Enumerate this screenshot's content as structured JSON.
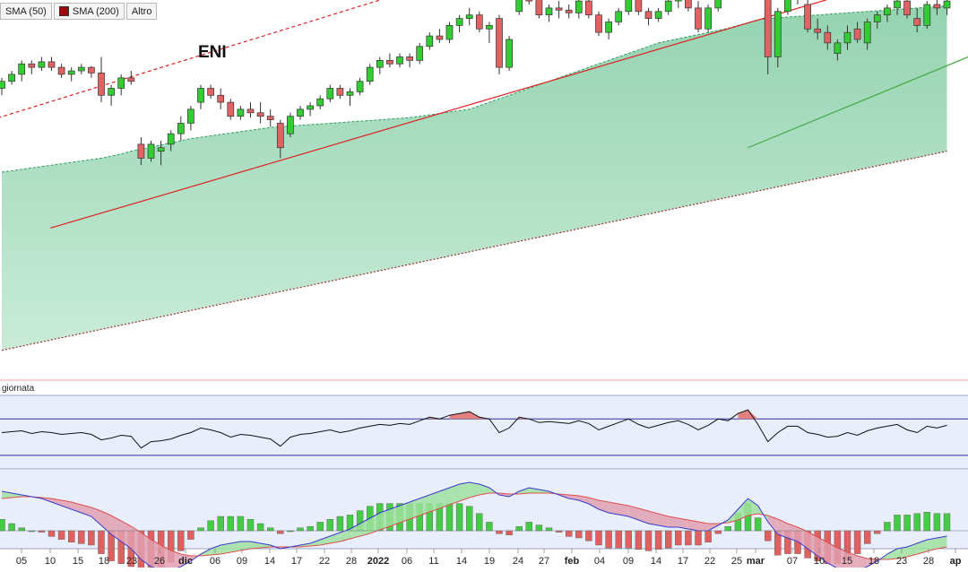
{
  "legend": [
    {
      "label": "SMA (50)",
      "color": "#1a3fcf"
    },
    {
      "label": "SMA (200)",
      "color": "#9b0d0d"
    },
    {
      "label": "Altro",
      "color": null
    }
  ],
  "ticker": "ENI",
  "indicator_label": "giornata",
  "colors": {
    "up": "#33cc33",
    "down": "#e06262",
    "wick": "#333333",
    "trend": "#dd2222",
    "band": "#8fd1ad",
    "rsi_line": "#111111",
    "macd_line": "#3a3ad0",
    "signal_line": "#e05050"
  },
  "chart_data": {
    "type": "candlestick",
    "title": "ENI",
    "x_labels": [
      "05",
      "10",
      "15",
      "18",
      "23",
      "26",
      "dic",
      "06",
      "09",
      "14",
      "17",
      "22",
      "28",
      "2022",
      "06",
      "11",
      "14",
      "19",
      "24",
      "27",
      "feb",
      "04",
      "09",
      "14",
      "17",
      "22",
      "25",
      "mar",
      "07",
      "10",
      "15",
      "18",
      "23",
      "28",
      "ap"
    ],
    "bold_labels": [
      "dic",
      "2022",
      "feb",
      "mar",
      "ap"
    ],
    "price_range": [
      8.2,
      13.5
    ],
    "ohlc": [
      [
        12.3,
        12.45,
        12.2,
        12.4
      ],
      [
        12.4,
        12.55,
        12.35,
        12.5
      ],
      [
        12.5,
        12.7,
        12.4,
        12.65
      ],
      [
        12.65,
        12.7,
        12.5,
        12.6
      ],
      [
        12.6,
        12.75,
        12.55,
        12.68
      ],
      [
        12.68,
        12.75,
        12.55,
        12.6
      ],
      [
        12.6,
        12.65,
        12.45,
        12.5
      ],
      [
        12.5,
        12.6,
        12.4,
        12.55
      ],
      [
        12.55,
        12.65,
        12.5,
        12.6
      ],
      [
        12.6,
        12.62,
        12.45,
        12.52
      ],
      [
        12.52,
        12.75,
        12.1,
        12.2
      ],
      [
        12.2,
        12.35,
        12.05,
        12.3
      ],
      [
        12.3,
        12.5,
        12.2,
        12.45
      ],
      [
        12.45,
        12.55,
        12.35,
        12.4
      ],
      [
        11.5,
        11.6,
        11.2,
        11.3
      ],
      [
        11.3,
        11.55,
        11.25,
        11.5
      ],
      [
        11.4,
        11.55,
        11.2,
        11.45
      ],
      [
        11.5,
        11.7,
        11.4,
        11.65
      ],
      [
        11.65,
        11.9,
        11.55,
        11.8
      ],
      [
        11.8,
        12.05,
        11.7,
        12.0
      ],
      [
        12.1,
        12.35,
        12.0,
        12.3
      ],
      [
        12.3,
        12.35,
        12.15,
        12.2
      ],
      [
        12.2,
        12.3,
        12.0,
        12.1
      ],
      [
        12.1,
        12.15,
        11.85,
        11.9
      ],
      [
        11.9,
        12.05,
        11.85,
        12.0
      ],
      [
        12.0,
        12.1,
        11.88,
        11.95
      ],
      [
        11.95,
        12.1,
        11.8,
        11.9
      ],
      [
        11.9,
        12.0,
        11.75,
        11.85
      ],
      [
        11.8,
        11.85,
        11.3,
        11.45
      ],
      [
        11.65,
        11.95,
        11.6,
        11.9
      ],
      [
        11.9,
        12.05,
        11.85,
        12.0
      ],
      [
        12.0,
        12.1,
        11.9,
        12.05
      ],
      [
        12.05,
        12.2,
        12.0,
        12.15
      ],
      [
        12.15,
        12.35,
        12.1,
        12.3
      ],
      [
        12.3,
        12.35,
        12.15,
        12.2
      ],
      [
        12.2,
        12.3,
        12.05,
        12.25
      ],
      [
        12.25,
        12.45,
        12.2,
        12.4
      ],
      [
        12.4,
        12.65,
        12.35,
        12.6
      ],
      [
        12.6,
        12.75,
        12.5,
        12.7
      ],
      [
        12.7,
        12.8,
        12.6,
        12.65
      ],
      [
        12.65,
        12.8,
        12.6,
        12.75
      ],
      [
        12.75,
        12.8,
        12.6,
        12.7
      ],
      [
        12.7,
        12.95,
        12.65,
        12.9
      ],
      [
        12.9,
        13.1,
        12.85,
        13.05
      ],
      [
        13.05,
        13.15,
        12.95,
        13.0
      ],
      [
        13.0,
        13.25,
        12.95,
        13.2
      ],
      [
        13.2,
        13.35,
        13.1,
        13.3
      ],
      [
        13.3,
        13.45,
        13.2,
        13.35
      ],
      [
        13.35,
        13.4,
        13.1,
        13.15
      ],
      [
        13.15,
        13.25,
        12.95,
        13.2
      ],
      [
        13.3,
        13.35,
        12.5,
        12.6
      ],
      [
        12.6,
        13.05,
        12.55,
        13.0
      ],
      [
        13.4,
        13.8,
        13.35,
        13.75
      ],
      [
        13.75,
        13.85,
        13.5,
        13.55
      ],
      [
        13.6,
        13.7,
        13.3,
        13.35
      ],
      [
        13.35,
        13.5,
        13.25,
        13.45
      ],
      [
        13.45,
        13.55,
        13.3,
        13.42
      ],
      [
        13.42,
        13.5,
        13.3,
        13.38
      ],
      [
        13.38,
        13.6,
        13.3,
        13.55
      ],
      [
        13.55,
        13.6,
        13.3,
        13.35
      ],
      [
        13.35,
        13.4,
        13.05,
        13.1
      ],
      [
        13.1,
        13.3,
        13.0,
        13.25
      ],
      [
        13.25,
        13.45,
        13.2,
        13.4
      ],
      [
        13.4,
        13.65,
        13.35,
        13.6
      ],
      [
        13.6,
        13.7,
        13.35,
        13.4
      ],
      [
        13.4,
        13.45,
        13.2,
        13.3
      ],
      [
        13.3,
        13.45,
        13.25,
        13.4
      ],
      [
        13.4,
        13.6,
        13.35,
        13.55
      ],
      [
        13.55,
        13.7,
        13.45,
        13.6
      ],
      [
        13.6,
        13.65,
        13.4,
        13.45
      ],
      [
        13.45,
        13.55,
        13.1,
        13.15
      ],
      [
        13.15,
        13.5,
        13.1,
        13.45
      ],
      [
        13.45,
        13.85,
        13.4,
        13.8
      ],
      [
        13.8,
        13.9,
        13.6,
        13.7
      ],
      [
        13.95,
        14.45,
        13.9,
        14.4
      ],
      [
        14.4,
        14.6,
        14.35,
        14.55
      ],
      [
        14.6,
        14.7,
        13.85,
        13.9
      ],
      [
        13.75,
        13.8,
        12.5,
        12.75
      ],
      [
        12.75,
        13.45,
        12.6,
        13.4
      ],
      [
        13.4,
        13.7,
        13.35,
        13.65
      ],
      [
        13.7,
        13.85,
        13.5,
        13.6
      ],
      [
        13.5,
        13.6,
        13.1,
        13.15
      ],
      [
        13.15,
        13.3,
        13.0,
        13.1
      ],
      [
        13.1,
        13.2,
        12.85,
        12.95
      ],
      [
        12.8,
        13.0,
        12.7,
        12.95
      ],
      [
        12.95,
        13.2,
        12.85,
        13.1
      ],
      [
        13.15,
        13.25,
        12.95,
        13.0
      ],
      [
        12.95,
        13.3,
        12.85,
        13.25
      ],
      [
        13.25,
        13.4,
        13.15,
        13.35
      ],
      [
        13.35,
        13.5,
        13.25,
        13.45
      ],
      [
        13.45,
        13.6,
        13.35,
        13.55
      ],
      [
        13.55,
        13.6,
        13.3,
        13.35
      ],
      [
        13.3,
        13.45,
        13.1,
        13.2
      ],
      [
        13.2,
        13.55,
        13.15,
        13.5
      ],
      [
        13.5,
        13.6,
        13.35,
        13.45
      ],
      [
        13.45,
        13.6,
        13.35,
        13.55
      ]
    ],
    "sma50": [
      11.1,
      11.12,
      11.14,
      11.16,
      11.18,
      11.2,
      11.22,
      11.24,
      11.26,
      11.28,
      11.3,
      11.33,
      11.36,
      11.4,
      11.43,
      11.46,
      11.49,
      11.52,
      11.55,
      11.58,
      11.6,
      11.62,
      11.64,
      11.66,
      11.68,
      11.7,
      11.72,
      11.74,
      11.75,
      11.76,
      11.77,
      11.78,
      11.79,
      11.8,
      11.81,
      11.82,
      11.83,
      11.84,
      11.85,
      11.86,
      11.87,
      11.88,
      11.9,
      11.92,
      11.94,
      11.96,
      11.98,
      12.0,
      12.05,
      12.1,
      12.15,
      12.2,
      12.25,
      12.3,
      12.35,
      12.4,
      12.45,
      12.5,
      12.55,
      12.6,
      12.65,
      12.7,
      12.75,
      12.8,
      12.85,
      12.9,
      12.95,
      12.98,
      13.01,
      13.04,
      13.07,
      13.1,
      13.13,
      13.16,
      13.2,
      13.24,
      13.28,
      13.3,
      13.31,
      13.32,
      13.33,
      13.34,
      13.35,
      13.36,
      13.37,
      13.38,
      13.39,
      13.4,
      13.41,
      13.42,
      13.43,
      13.44,
      13.45,
      13.46,
      13.47,
      13.48
    ],
    "sma200": [
      8.55,
      8.58,
      8.61,
      8.64,
      8.67,
      8.7,
      8.73,
      8.76,
      8.79,
      8.82,
      8.85,
      8.88,
      8.91,
      8.94,
      8.97,
      9.0,
      9.03,
      9.06,
      9.09,
      9.12,
      9.15,
      9.18,
      9.21,
      9.24,
      9.27,
      9.3,
      9.33,
      9.36,
      9.39,
      9.42,
      9.45,
      9.48,
      9.51,
      9.54,
      9.57,
      9.6,
      9.63,
      9.66,
      9.69,
      9.72,
      9.75,
      9.78,
      9.81,
      9.84,
      9.87,
      9.9,
      9.93,
      9.96,
      9.99,
      10.02,
      10.05,
      10.08,
      10.11,
      10.14,
      10.17,
      10.2,
      10.23,
      10.26,
      10.29,
      10.32,
      10.35,
      10.38,
      10.41,
      10.44,
      10.47,
      10.5,
      10.53,
      10.56,
      10.59,
      10.62,
      10.65,
      10.68,
      10.71,
      10.74,
      10.77,
      10.8,
      10.83,
      10.86,
      10.89,
      10.92,
      10.95,
      10.98,
      11.01,
      11.04,
      11.07,
      11.1,
      11.13,
      11.16,
      11.19,
      11.22,
      11.25,
      11.28,
      11.31,
      11.34,
      11.37,
      11.4
    ],
    "rsi": [
      55,
      56,
      57,
      54,
      56,
      55,
      53,
      54,
      55,
      53,
      47,
      49,
      52,
      51,
      38,
      45,
      46,
      48,
      52,
      55,
      60,
      58,
      55,
      50,
      53,
      52,
      50,
      48,
      40,
      50,
      53,
      54,
      56,
      58,
      55,
      57,
      60,
      62,
      64,
      63,
      65,
      64,
      68,
      72,
      70,
      74,
      76,
      78,
      72,
      70,
      55,
      60,
      72,
      70,
      66,
      67,
      66,
      65,
      68,
      65,
      58,
      62,
      66,
      70,
      64,
      60,
      63,
      66,
      68,
      64,
      58,
      63,
      70,
      68,
      76,
      80,
      64,
      45,
      55,
      62,
      62,
      55,
      53,
      50,
      51,
      55,
      52,
      57,
      60,
      62,
      64,
      58,
      55,
      62,
      60,
      63
    ],
    "rsi_levels": [
      70,
      30
    ],
    "macd": [
      0.22,
      0.21,
      0.2,
      0.19,
      0.18,
      0.16,
      0.14,
      0.12,
      0.1,
      0.08,
      0.03,
      -0.02,
      -0.06,
      -0.1,
      -0.16,
      -0.2,
      -0.22,
      -0.22,
      -0.2,
      -0.17,
      -0.13,
      -0.1,
      -0.08,
      -0.07,
      -0.06,
      -0.06,
      -0.07,
      -0.08,
      -0.1,
      -0.09,
      -0.08,
      -0.07,
      -0.05,
      -0.03,
      -0.01,
      0.01,
      0.04,
      0.07,
      0.1,
      0.12,
      0.14,
      0.16,
      0.18,
      0.2,
      0.22,
      0.24,
      0.26,
      0.27,
      0.26,
      0.24,
      0.2,
      0.19,
      0.22,
      0.24,
      0.23,
      0.22,
      0.2,
      0.18,
      0.17,
      0.15,
      0.12,
      0.1,
      0.09,
      0.08,
      0.06,
      0.04,
      0.03,
      0.02,
      0.02,
      0.01,
      0.0,
      0.0,
      0.03,
      0.06,
      0.12,
      0.18,
      0.14,
      0.05,
      -0.02,
      -0.04,
      -0.06,
      -0.1,
      -0.14,
      -0.18,
      -0.21,
      -0.22,
      -0.22,
      -0.2,
      -0.17,
      -0.13,
      -0.1,
      -0.09,
      -0.07,
      -0.05,
      -0.04,
      -0.03
    ],
    "macd_signal": [
      0.18,
      0.185,
      0.19,
      0.19,
      0.185,
      0.18,
      0.17,
      0.16,
      0.145,
      0.13,
      0.11,
      0.085,
      0.055,
      0.025,
      -0.01,
      -0.05,
      -0.08,
      -0.11,
      -0.13,
      -0.14,
      -0.14,
      -0.135,
      -0.13,
      -0.12,
      -0.11,
      -0.1,
      -0.095,
      -0.09,
      -0.09,
      -0.09,
      -0.09,
      -0.085,
      -0.08,
      -0.07,
      -0.06,
      -0.045,
      -0.03,
      -0.015,
      0.005,
      0.025,
      0.045,
      0.065,
      0.085,
      0.105,
      0.125,
      0.145,
      0.165,
      0.185,
      0.2,
      0.21,
      0.21,
      0.205,
      0.205,
      0.21,
      0.21,
      0.21,
      0.205,
      0.2,
      0.195,
      0.185,
      0.17,
      0.16,
      0.15,
      0.14,
      0.125,
      0.11,
      0.095,
      0.08,
      0.07,
      0.06,
      0.05,
      0.04,
      0.04,
      0.045,
      0.06,
      0.085,
      0.095,
      0.085,
      0.065,
      0.04,
      0.02,
      -0.005,
      -0.035,
      -0.065,
      -0.095,
      -0.12,
      -0.14,
      -0.155,
      -0.16,
      -0.16,
      -0.155,
      -0.145,
      -0.13,
      -0.115,
      -0.1,
      -0.09
    ]
  }
}
